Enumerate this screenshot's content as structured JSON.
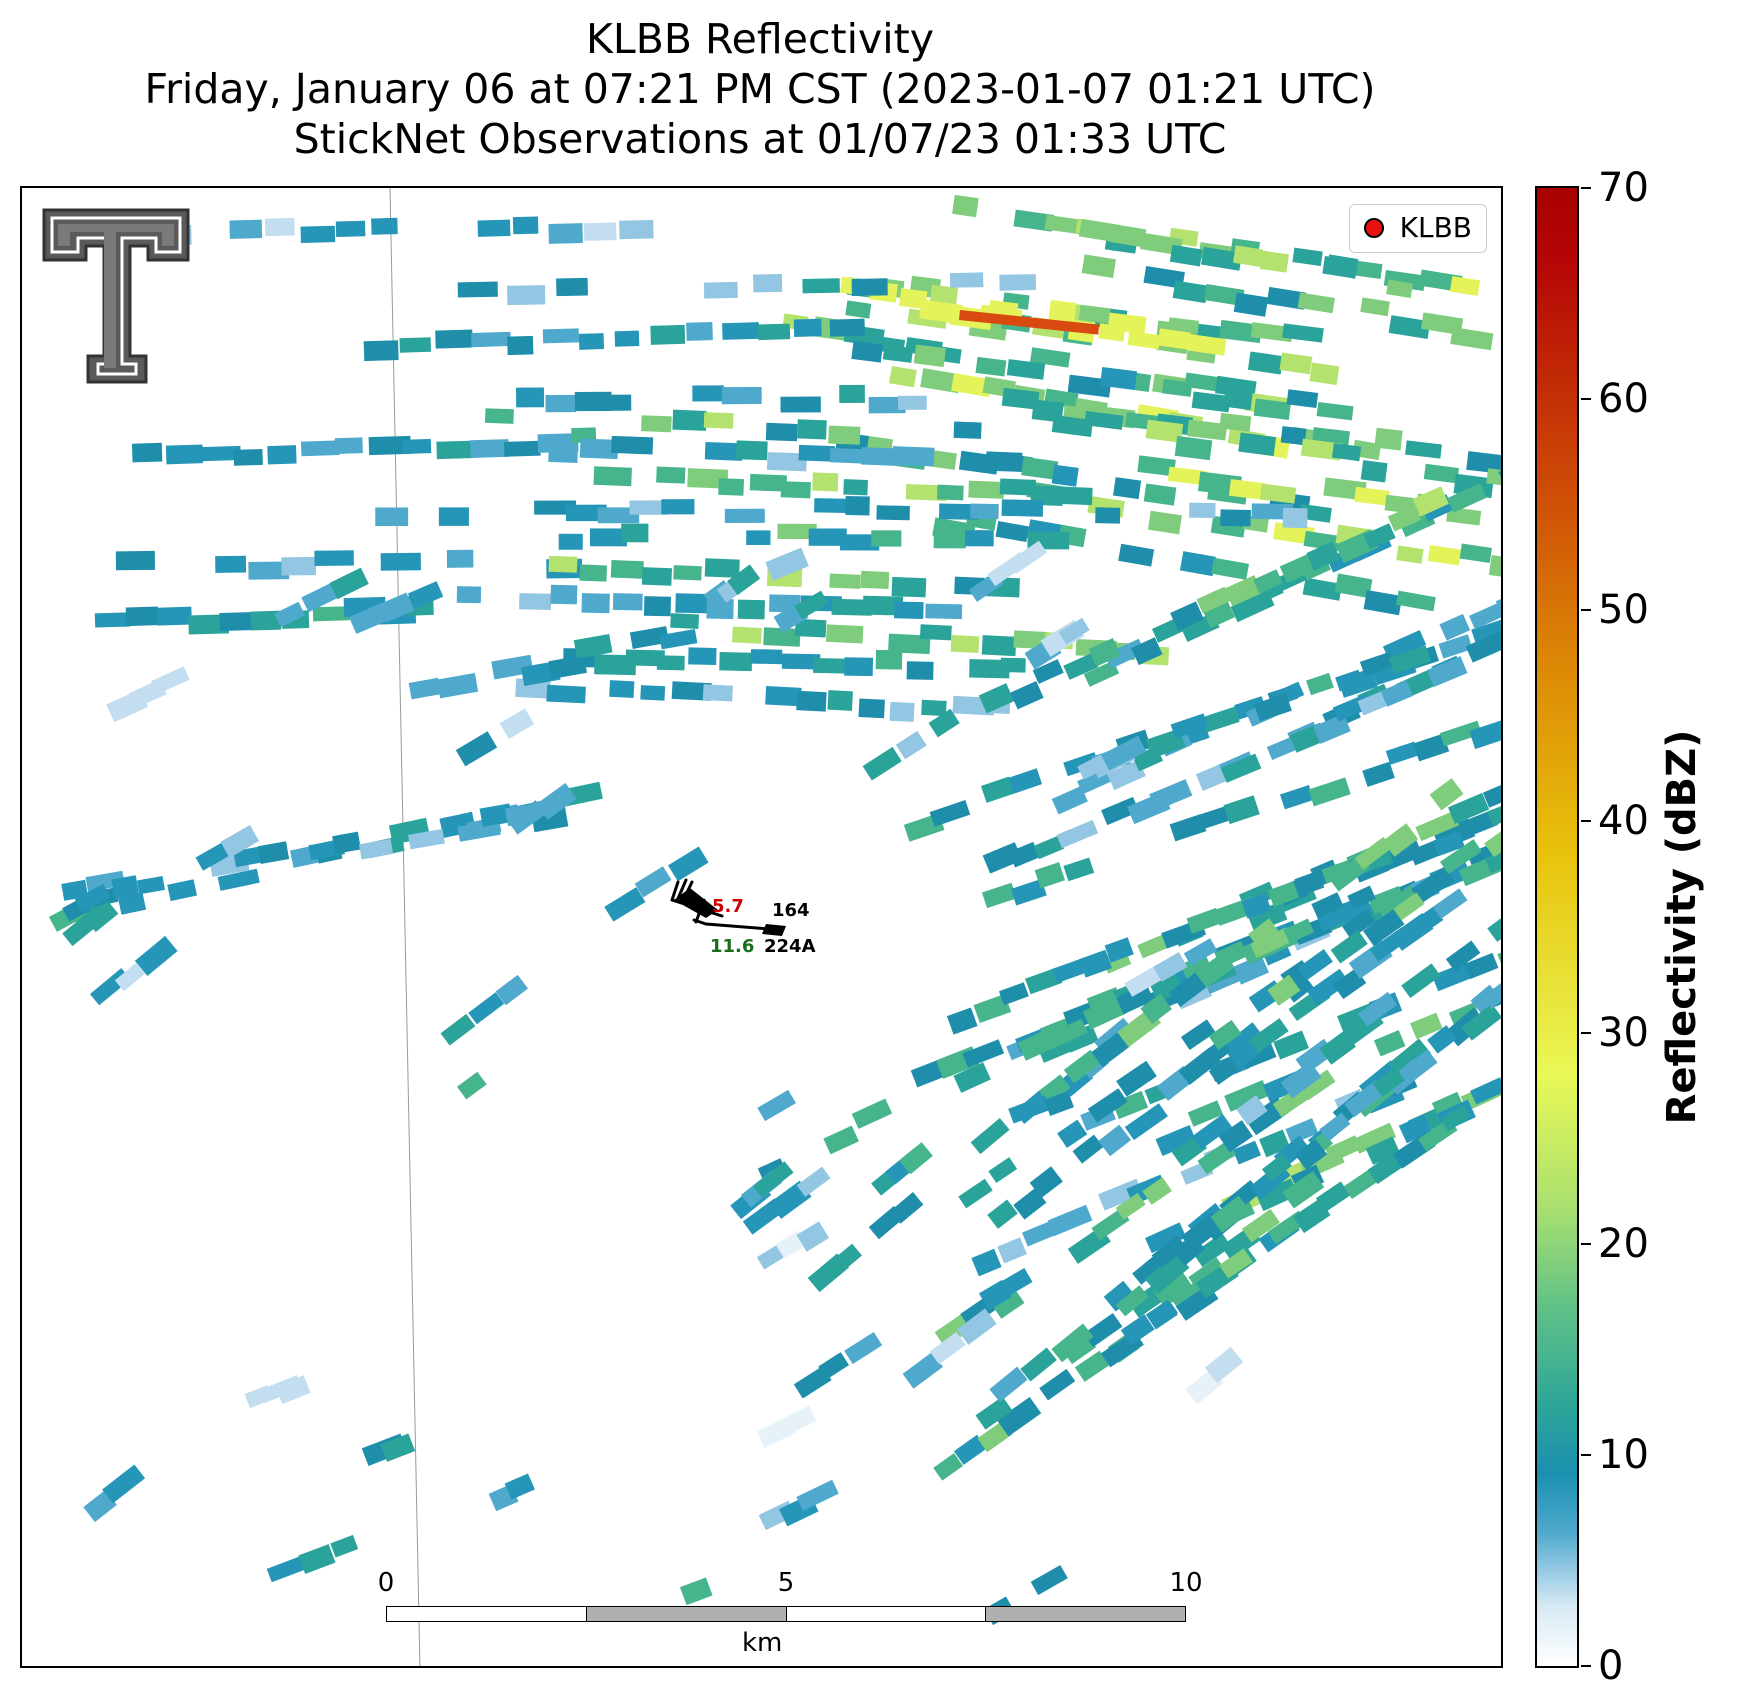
{
  "title": {
    "line1": "KLBB Reflectivity",
    "line2": "Friday, January 06 at 07:21 PM CST (2023-01-07 01:21 UTC)",
    "line3": "StickNet Observations at 01/07/23 01:33 UTC"
  },
  "legend": {
    "label": "KLBB",
    "marker_color": "#e81010"
  },
  "scalebar": {
    "ticks": [
      "0",
      "5",
      "10"
    ],
    "unit": "km"
  },
  "stations": [
    {
      "id": "164",
      "temp": "5.7",
      "temp_color": "#cc0000"
    },
    {
      "id": "224A",
      "temp": "11.6",
      "temp_color": "#1a6e1a"
    }
  ],
  "colorbar": {
    "label": "Reflectivity (dBZ)",
    "range": [
      0,
      70
    ],
    "ticks": [
      "0",
      "10",
      "20",
      "30",
      "40",
      "50",
      "60",
      "70"
    ]
  },
  "logo": {
    "name": "texas-tech-double-t-logo"
  }
}
